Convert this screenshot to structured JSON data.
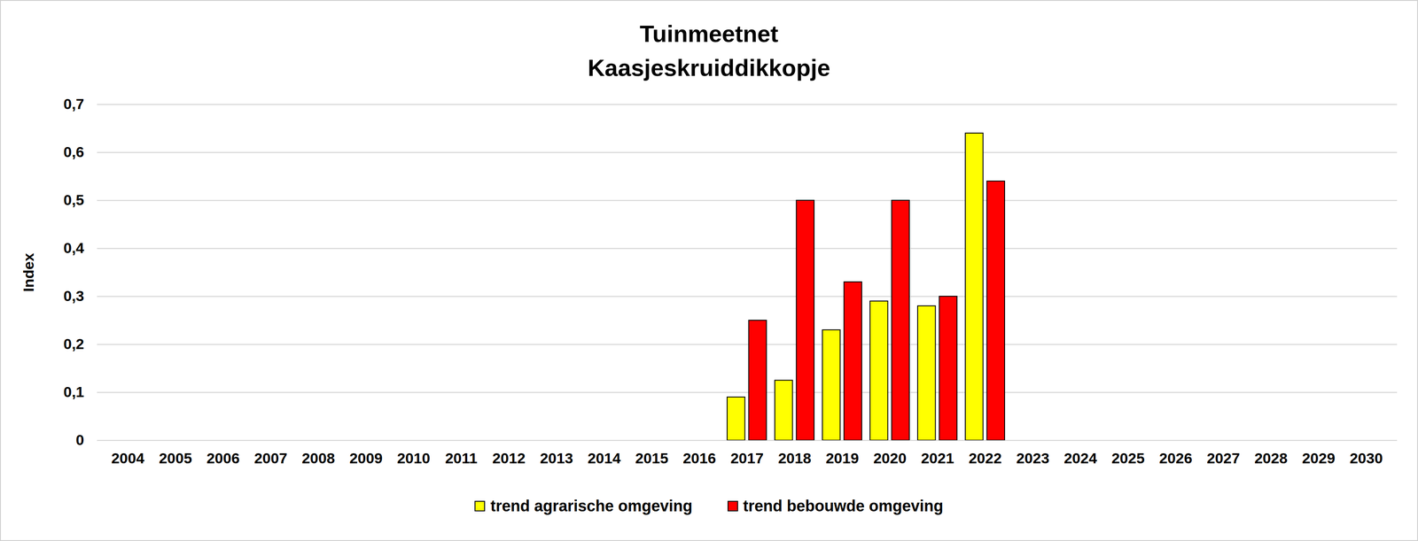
{
  "chart_data": {
    "type": "bar",
    "title": "Tuinmeetnet",
    "subtitle": "Kaasjeskruiddikkopje",
    "y_label": "Index",
    "categories": [
      "2004",
      "2005",
      "2006",
      "2007",
      "2008",
      "2009",
      "2010",
      "2011",
      "2012",
      "2013",
      "2014",
      "2015",
      "2016",
      "2017",
      "2018",
      "2019",
      "2020",
      "2021",
      "2022",
      "2023",
      "2024",
      "2025",
      "2026",
      "2027",
      "2028",
      "2029",
      "2030"
    ],
    "series": [
      {
        "name": "trend agrarische omgeving",
        "color": "#ffff00",
        "values": [
          null,
          null,
          null,
          null,
          null,
          null,
          null,
          null,
          null,
          null,
          null,
          null,
          null,
          0.09,
          0.125,
          0.23,
          0.29,
          0.28,
          0.64,
          null,
          null,
          null,
          null,
          null,
          null,
          null,
          null
        ]
      },
      {
        "name": "trend bebouwde omgeving",
        "color": "#ff0000",
        "values": [
          null,
          null,
          null,
          null,
          null,
          null,
          null,
          null,
          null,
          null,
          null,
          null,
          null,
          0.25,
          0.5,
          0.33,
          0.5,
          0.3,
          0.54,
          null,
          null,
          null,
          null,
          null,
          null,
          null,
          null
        ]
      }
    ],
    "ylim": [
      0,
      0.7
    ],
    "yticks": [
      0,
      {
        "value": 0.1,
        "label": "0,1"
      },
      {
        "value": 0.2,
        "label": "0,2"
      },
      {
        "value": 0.3,
        "label": "0,3"
      },
      {
        "value": 0.4,
        "label": "0,4"
      },
      {
        "value": 0.5,
        "label": "0,5"
      },
      {
        "value": 0.6,
        "label": "0,6"
      },
      {
        "value": 0.7,
        "label": "0,7"
      }
    ],
    "grid": true,
    "legend": "bottom"
  }
}
